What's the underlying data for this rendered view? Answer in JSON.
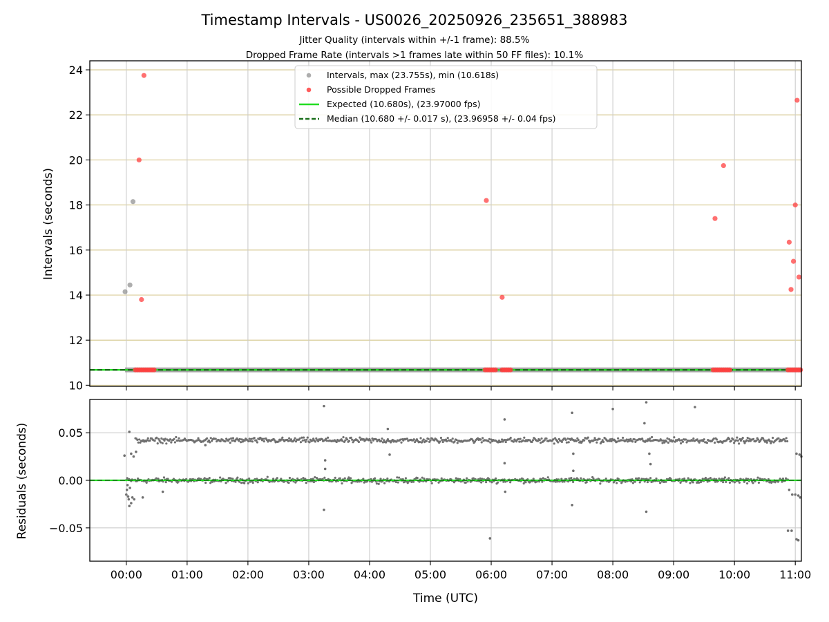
{
  "figure": {
    "title": "Timestamp Intervals - US0026_20250926_235651_388983",
    "subtitle1": "Jitter Quality (intervals within +/-1 frame): 88.5%",
    "subtitle2": "Dropped Frame Rate (intervals >1 frames late within 50 FF files): 10.1%",
    "xlabel": "Time (UTC)",
    "x_ticks": [
      "00:00",
      "01:00",
      "02:00",
      "03:00",
      "04:00",
      "05:00",
      "06:00",
      "07:00",
      "08:00",
      "09:00",
      "10:00",
      "11:00"
    ],
    "colors": {
      "intervals": "#8c8c8c",
      "dropped": "#ff4040",
      "expected": "#22dd22",
      "median": "#1a6e1a",
      "hgrid_top": "#d4c58a",
      "vgrid": "#cccccc",
      "residuals": "#707070"
    }
  },
  "chart_data": [
    {
      "type": "scatter",
      "ylabel": "Intervals (seconds)",
      "xlim_hours": [
        -0.6,
        11.1
      ],
      "ylim": [
        9.95,
        24.4
      ],
      "y_ticks": [
        "10",
        "12",
        "14",
        "16",
        "18",
        "20",
        "22",
        "24"
      ],
      "grid": "y-major plus x-major",
      "legend": {
        "placement": "upper-center",
        "entries": [
          {
            "label": "Intervals, max (23.755s), min (10.618s)",
            "kind": "marker",
            "color": "#8c8c8c"
          },
          {
            "label": "Possible Dropped Frames",
            "kind": "marker",
            "color": "#ff4040"
          },
          {
            "label": "Expected (10.680s), (23.97000 fps)",
            "kind": "line",
            "color": "#22dd22"
          },
          {
            "label": "Median (10.680 +/- 0.017 s), (23.96958 +/- 0.04 fps)",
            "kind": "dashed-line",
            "color": "#1a6e1a"
          }
        ]
      },
      "expected_y": 10.68,
      "median_y": 10.68,
      "baseline_band": {
        "y": 10.68,
        "x_start": -0.02,
        "x_end": 11.1
      },
      "series": [
        {
          "name": "Intervals, max (23.755s), min (10.618s)",
          "outliers": [
            {
              "x": -0.02,
              "y": 14.15
            },
            {
              "x": 0.06,
              "y": 14.45
            },
            {
              "x": 0.11,
              "y": 18.15
            }
          ]
        },
        {
          "name": "Possible Dropped Frames",
          "points": [
            {
              "x": 0.21,
              "y": 20.0
            },
            {
              "x": 0.25,
              "y": 13.8
            },
            {
              "x": 0.29,
              "y": 23.75
            },
            {
              "x": 5.92,
              "y": 18.2
            },
            {
              "x": 6.18,
              "y": 13.9
            },
            {
              "x": 9.68,
              "y": 17.4
            },
            {
              "x": 9.82,
              "y": 19.75
            },
            {
              "x": 10.9,
              "y": 16.35
            },
            {
              "x": 10.93,
              "y": 14.25
            },
            {
              "x": 10.97,
              "y": 15.5
            },
            {
              "x": 11.0,
              "y": 18.0
            },
            {
              "x": 11.03,
              "y": 22.65
            },
            {
              "x": 11.06,
              "y": 14.8
            }
          ],
          "baseline_clusters": [
            {
              "x_start": 0.15,
              "x_end": 0.47,
              "y": 10.68
            },
            {
              "x_start": 5.9,
              "x_end": 6.1,
              "y": 10.68
            },
            {
              "x_start": 6.18,
              "x_end": 6.35,
              "y": 10.68
            },
            {
              "x_start": 9.65,
              "x_end": 9.95,
              "y": 10.68
            },
            {
              "x_start": 10.88,
              "x_end": 11.1,
              "y": 10.68
            }
          ]
        }
      ]
    },
    {
      "type": "scatter",
      "ylabel": "Residuals (seconds)",
      "xlim_hours": [
        -0.6,
        11.1
      ],
      "ylim": [
        -0.085,
        0.085
      ],
      "y_ticks": [
        "0.05",
        "0.00",
        "−0.05"
      ],
      "y_tick_values": [
        0.05,
        0.0,
        -0.05
      ],
      "grid": "y-major plus x-major",
      "zero_line_y": 0.0,
      "bands": [
        {
          "y": 0.0,
          "x_start": 0.0,
          "x_end": 10.88,
          "spread": 0.004
        },
        {
          "y": 0.042,
          "x_start": 0.15,
          "x_end": 10.88,
          "spread": 0.004
        }
      ],
      "series": [
        {
          "name": "",
          "points": [
            {
              "x": -0.03,
              "y": 0.026
            },
            {
              "x": 0.05,
              "y": 0.051
            },
            {
              "x": 0.08,
              "y": 0.028
            },
            {
              "x": 0.12,
              "y": 0.025
            },
            {
              "x": 0.16,
              "y": 0.03
            },
            {
              "x": 0.0,
              "y": -0.015
            },
            {
              "x": 0.01,
              "y": -0.01
            },
            {
              "x": 0.02,
              "y": -0.005
            },
            {
              "x": 0.03,
              "y": -0.017
            },
            {
              "x": 0.04,
              "y": -0.02
            },
            {
              "x": 0.05,
              "y": -0.027
            },
            {
              "x": 0.06,
              "y": -0.008
            },
            {
              "x": 0.08,
              "y": -0.024
            },
            {
              "x": 0.1,
              "y": -0.018
            },
            {
              "x": 0.13,
              "y": -0.02
            },
            {
              "x": 0.27,
              "y": -0.018
            },
            {
              "x": 0.6,
              "y": -0.012
            },
            {
              "x": 1.3,
              "y": 0.037
            },
            {
              "x": 3.25,
              "y": 0.078
            },
            {
              "x": 3.27,
              "y": 0.021
            },
            {
              "x": 3.27,
              "y": 0.012
            },
            {
              "x": 3.25,
              "y": -0.031
            },
            {
              "x": 4.3,
              "y": 0.054
            },
            {
              "x": 4.33,
              "y": 0.027
            },
            {
              "x": 5.98,
              "y": -0.061
            },
            {
              "x": 6.22,
              "y": 0.064
            },
            {
              "x": 6.22,
              "y": 0.018
            },
            {
              "x": 6.23,
              "y": -0.012
            },
            {
              "x": 7.33,
              "y": 0.071
            },
            {
              "x": 7.35,
              "y": 0.028
            },
            {
              "x": 7.35,
              "y": 0.01
            },
            {
              "x": 7.33,
              "y": -0.026
            },
            {
              "x": 8.0,
              "y": 0.075
            },
            {
              "x": 8.52,
              "y": 0.06
            },
            {
              "x": 8.55,
              "y": 0.082
            },
            {
              "x": 8.55,
              "y": -0.033
            },
            {
              "x": 8.6,
              "y": 0.028
            },
            {
              "x": 8.62,
              "y": 0.017
            },
            {
              "x": 9.35,
              "y": 0.077
            },
            {
              "x": 10.88,
              "y": -0.053
            },
            {
              "x": 10.94,
              "y": -0.053
            },
            {
              "x": 11.02,
              "y": -0.062
            },
            {
              "x": 11.05,
              "y": -0.063
            },
            {
              "x": 10.9,
              "y": -0.01
            },
            {
              "x": 10.95,
              "y": -0.015
            },
            {
              "x": 11.0,
              "y": -0.015
            },
            {
              "x": 11.05,
              "y": -0.016
            },
            {
              "x": 11.08,
              "y": -0.018
            },
            {
              "x": 11.02,
              "y": 0.028
            },
            {
              "x": 11.07,
              "y": 0.027
            },
            {
              "x": 11.1,
              "y": 0.025
            }
          ]
        }
      ]
    }
  ]
}
